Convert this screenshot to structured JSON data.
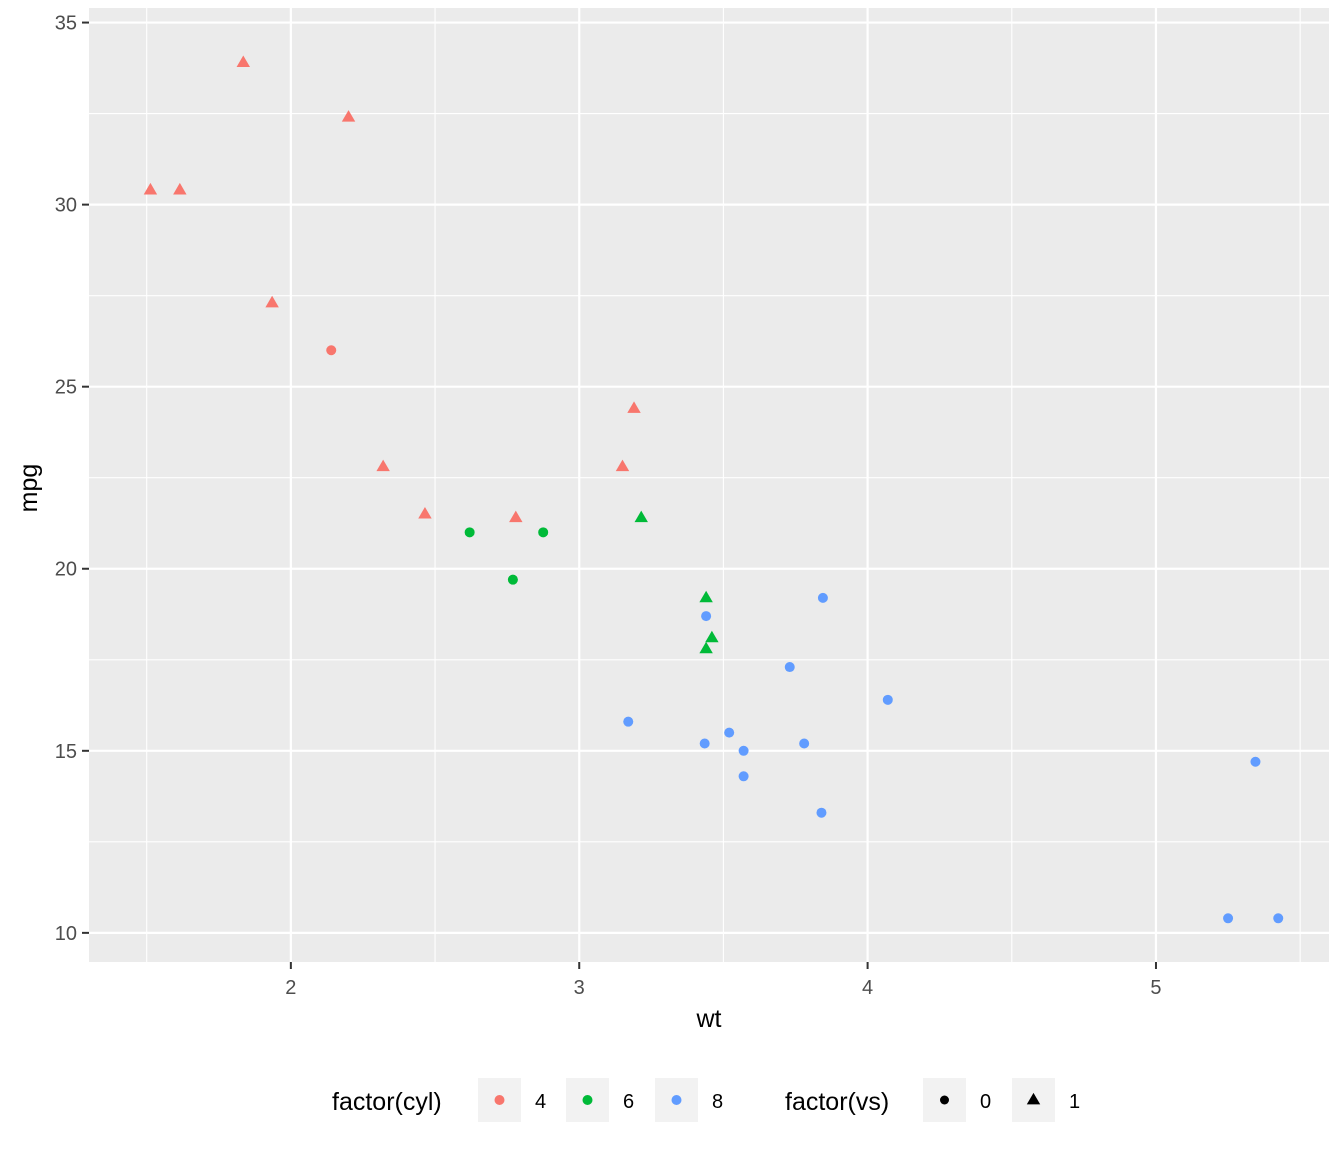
{
  "chart_data": {
    "type": "scatter",
    "title": "",
    "xlabel": "wt",
    "ylabel": "mpg",
    "xlim": [
      1.3,
      5.6
    ],
    "ylim": [
      9.2,
      35.4
    ],
    "x_ticks": [
      2,
      3,
      4,
      5
    ],
    "y_ticks": [
      10,
      15,
      20,
      25,
      30,
      35
    ],
    "x_tick_labels": [
      "2",
      "3",
      "4",
      "5"
    ],
    "y_tick_labels": [
      "10",
      "15",
      "20",
      "25",
      "30",
      "35"
    ],
    "grid": true,
    "panel_background": "#ebebeb",
    "color_legend": {
      "title": "factor(cyl)",
      "entries": [
        {
          "label": "4",
          "color": "#f8766d"
        },
        {
          "label": "6",
          "color": "#00ba38"
        },
        {
          "label": "8",
          "color": "#619cff"
        }
      ]
    },
    "shape_legend": {
      "title": "factor(vs)",
      "entries": [
        {
          "label": "0",
          "shape": "circle"
        },
        {
          "label": "1",
          "shape": "triangle"
        }
      ]
    },
    "legend_position": "bottom",
    "points": [
      {
        "x": 2.62,
        "y": 21.0,
        "cyl": "6",
        "vs": "0"
      },
      {
        "x": 2.875,
        "y": 21.0,
        "cyl": "6",
        "vs": "0"
      },
      {
        "x": 2.32,
        "y": 22.8,
        "cyl": "4",
        "vs": "1"
      },
      {
        "x": 3.215,
        "y": 21.4,
        "cyl": "6",
        "vs": "1"
      },
      {
        "x": 3.44,
        "y": 18.7,
        "cyl": "8",
        "vs": "0"
      },
      {
        "x": 3.46,
        "y": 18.1,
        "cyl": "6",
        "vs": "1"
      },
      {
        "x": 3.57,
        "y": 14.3,
        "cyl": "8",
        "vs": "0"
      },
      {
        "x": 3.19,
        "y": 24.4,
        "cyl": "4",
        "vs": "1"
      },
      {
        "x": 3.15,
        "y": 22.8,
        "cyl": "4",
        "vs": "1"
      },
      {
        "x": 3.44,
        "y": 19.2,
        "cyl": "6",
        "vs": "1"
      },
      {
        "x": 3.44,
        "y": 17.8,
        "cyl": "6",
        "vs": "1"
      },
      {
        "x": 4.07,
        "y": 16.4,
        "cyl": "8",
        "vs": "0"
      },
      {
        "x": 3.73,
        "y": 17.3,
        "cyl": "8",
        "vs": "0"
      },
      {
        "x": 3.78,
        "y": 15.2,
        "cyl": "8",
        "vs": "0"
      },
      {
        "x": 5.25,
        "y": 10.4,
        "cyl": "8",
        "vs": "0"
      },
      {
        "x": 5.424,
        "y": 10.4,
        "cyl": "8",
        "vs": "0"
      },
      {
        "x": 5.345,
        "y": 14.7,
        "cyl": "8",
        "vs": "0"
      },
      {
        "x": 2.2,
        "y": 32.4,
        "cyl": "4",
        "vs": "1"
      },
      {
        "x": 1.615,
        "y": 30.4,
        "cyl": "4",
        "vs": "1"
      },
      {
        "x": 1.835,
        "y": 33.9,
        "cyl": "4",
        "vs": "1"
      },
      {
        "x": 2.465,
        "y": 21.5,
        "cyl": "4",
        "vs": "1"
      },
      {
        "x": 3.52,
        "y": 15.5,
        "cyl": "8",
        "vs": "0"
      },
      {
        "x": 3.435,
        "y": 15.2,
        "cyl": "8",
        "vs": "0"
      },
      {
        "x": 3.84,
        "y": 13.3,
        "cyl": "8",
        "vs": "0"
      },
      {
        "x": 3.845,
        "y": 19.2,
        "cyl": "8",
        "vs": "0"
      },
      {
        "x": 1.935,
        "y": 27.3,
        "cyl": "4",
        "vs": "1"
      },
      {
        "x": 2.14,
        "y": 26.0,
        "cyl": "4",
        "vs": "0"
      },
      {
        "x": 1.513,
        "y": 30.4,
        "cyl": "4",
        "vs": "1"
      },
      {
        "x": 3.17,
        "y": 15.8,
        "cyl": "8",
        "vs": "0"
      },
      {
        "x": 2.77,
        "y": 19.7,
        "cyl": "6",
        "vs": "0"
      },
      {
        "x": 3.57,
        "y": 15.0,
        "cyl": "8",
        "vs": "0"
      },
      {
        "x": 2.78,
        "y": 21.4,
        "cyl": "4",
        "vs": "1"
      }
    ]
  }
}
